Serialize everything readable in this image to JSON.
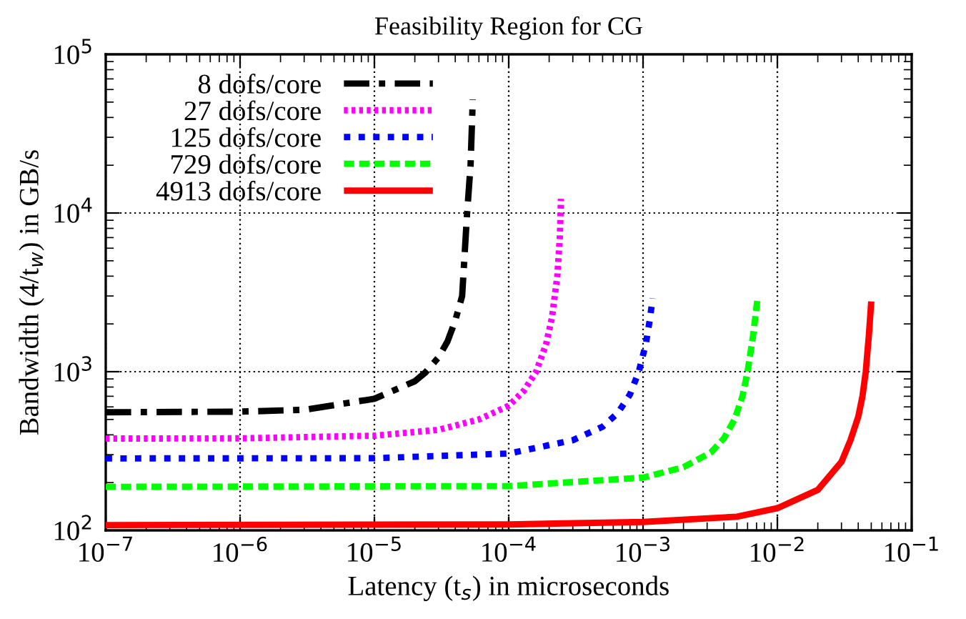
{
  "chart_data": {
    "type": "line",
    "title": "Feasibility Region for CG",
    "xlabel": "Latency (t$_{s}$) in microseconds",
    "ylabel": "Bandwidth (4/t$_{w}$) in GB/s",
    "log": "xy",
    "grid": true,
    "legend": "top left",
    "xlim": [
      1e-07,
      0.1
    ],
    "ylim": [
      100,
      100000
    ],
    "xticks": [
      {
        "value": 1e-07,
        "label": "10$^{−7}$"
      },
      {
        "value": 1e-06,
        "label": "10$^{−6}$"
      },
      {
        "value": 1e-05,
        "label": "10$^{−5}$"
      },
      {
        "value": 0.0001,
        "label": "10$^{−4}$"
      },
      {
        "value": 0.001,
        "label": "10$^{−3}$"
      },
      {
        "value": 0.01,
        "label": "10$^{−2}$"
      },
      {
        "value": 0.1,
        "label": "10$^{−1}$"
      }
    ],
    "yticks": [
      {
        "value": 100,
        "label": "10$^{2}$"
      },
      {
        "value": 1000,
        "label": "10$^{3}$"
      },
      {
        "value": 10000,
        "label": "10$^{4}$"
      },
      {
        "value": 100000,
        "label": "10$^{5}$"
      }
    ],
    "series": [
      {
        "name": "8 dofs/core",
        "color": "#000000",
        "line_style": "dashdot",
        "x": [
          1e-07,
          1e-06,
          3e-06,
          1e-05,
          2e-05,
          2.4e-05,
          3e-05,
          3.5e-05,
          4e-05,
          4.5e-05,
          4.9e-05,
          5.2e-05,
          5.4e-05
        ],
        "values": [
          555,
          560,
          575,
          675,
          870,
          990,
          1230,
          1550,
          2100,
          3000,
          10000,
          20000,
          52000
        ]
      },
      {
        "name": "27 dofs/core",
        "color": "#ff00ff",
        "line_style": "densedot",
        "x": [
          1e-07,
          1e-06,
          1e-05,
          3e-05,
          6e-05,
          0.0001,
          0.00013,
          0.00016,
          0.00019,
          0.00021,
          0.00023,
          0.00024,
          0.000245
        ],
        "values": [
          379,
          380,
          395,
          430,
          500,
          610,
          760,
          1000,
          1500,
          2200,
          4000,
          7000,
          12300
        ]
      },
      {
        "name": "125 dofs/core",
        "color": "#0000ff",
        "line_style": "dotted",
        "x": [
          1e-07,
          1e-05,
          0.0001,
          0.0003,
          0.0005,
          0.00065,
          0.0008,
          0.00093,
          0.00105,
          0.00112,
          0.00118
        ],
        "values": [
          284,
          285,
          305,
          370,
          450,
          550,
          720,
          1000,
          1500,
          2100,
          2900
        ]
      },
      {
        "name": "729 dofs/core",
        "color": "#00ff00",
        "line_style": "dashed",
        "x": [
          1e-07,
          0.0001,
          0.001,
          0.002,
          0.0032,
          0.004,
          0.0048,
          0.0055,
          0.006,
          0.0066,
          0.0071
        ],
        "values": [
          188,
          190,
          215,
          250,
          310,
          380,
          500,
          700,
          1000,
          1700,
          2850
        ]
      },
      {
        "name": "4913 dofs/core",
        "color": "#ff0000",
        "line_style": "solid",
        "x": [
          1e-07,
          0.0001,
          0.001,
          0.005,
          0.01,
          0.02,
          0.03,
          0.035,
          0.04,
          0.043,
          0.0455,
          0.048,
          0.05
        ],
        "values": [
          108,
          109,
          113,
          122,
          138,
          180,
          270,
          370,
          520,
          700,
          1000,
          1700,
          2770
        ]
      }
    ]
  }
}
